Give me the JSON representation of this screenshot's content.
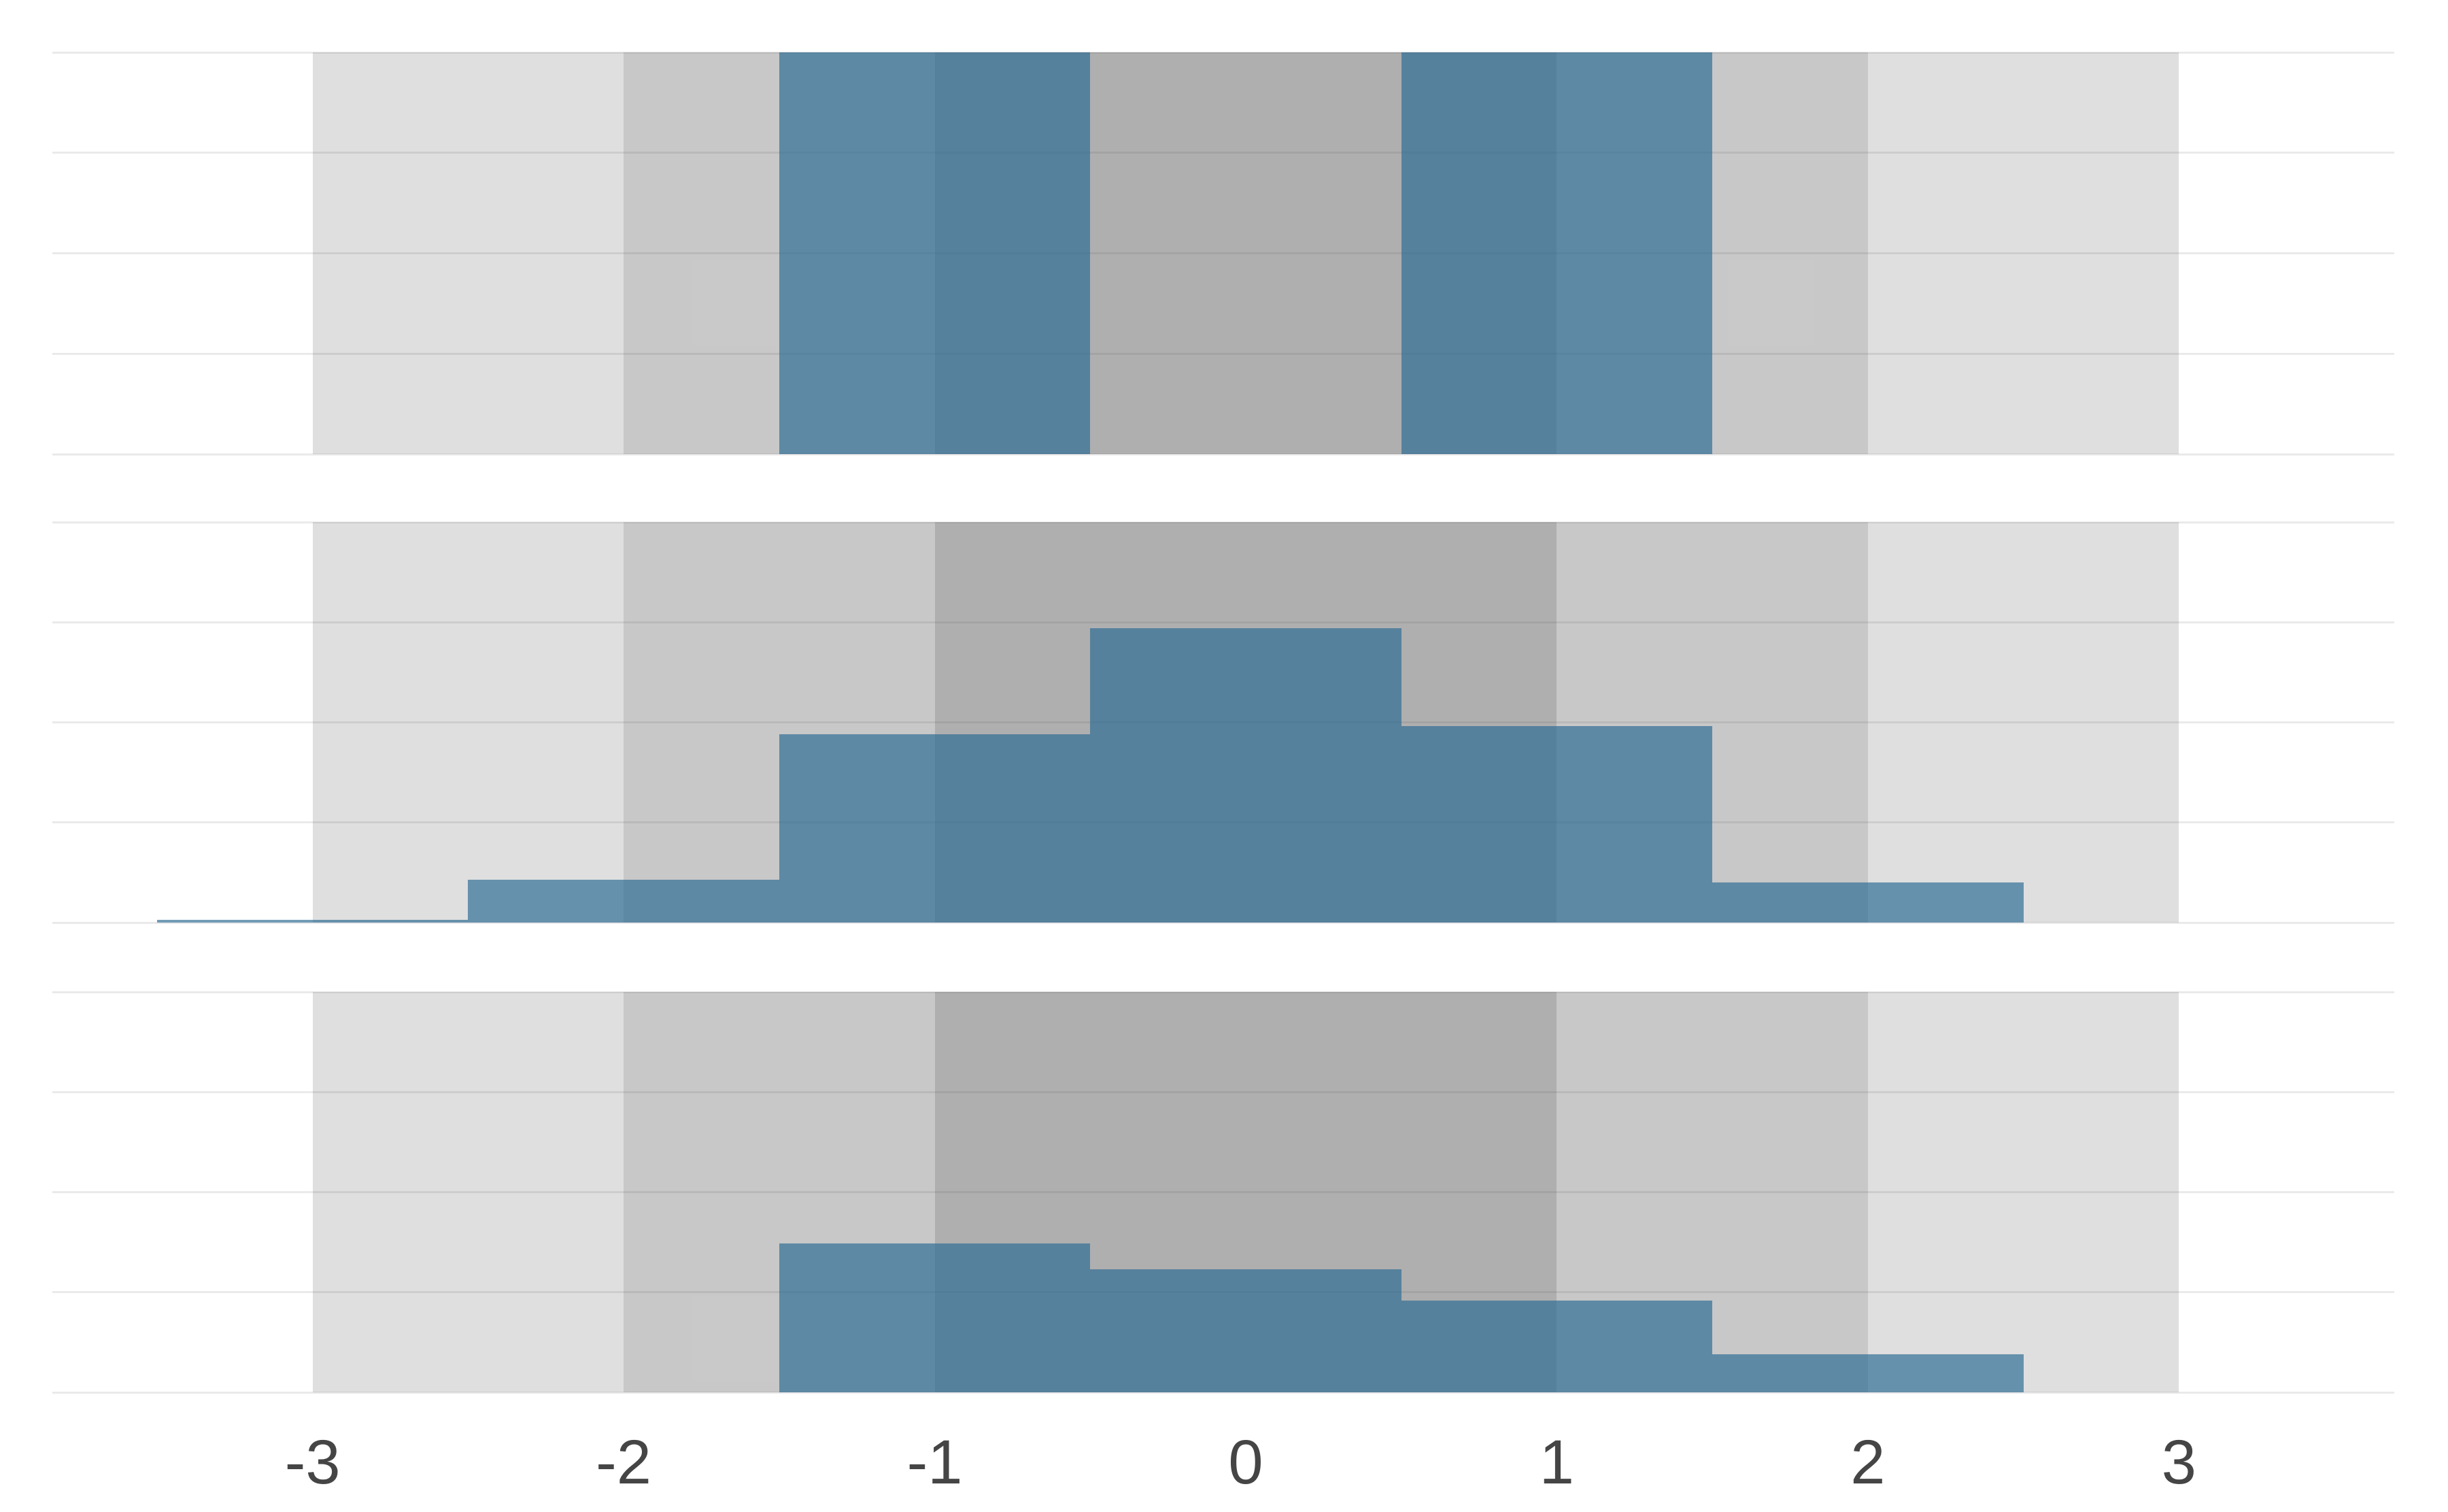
{
  "chart_data": {
    "type": "bar",
    "variant": "three vertically faceted histograms over nested gray sigma bands (white background, light horizontal gridlines, shared x axis)",
    "x_ticks": [
      -3,
      -2,
      -1,
      0,
      1,
      2,
      3
    ],
    "x_range": [
      -3.5,
      3.5
    ],
    "ylim": [
      0,
      4
    ],
    "y_gridlines": [
      0,
      1,
      2,
      3,
      4
    ],
    "bin_width": 1,
    "grid": true,
    "legend": false,
    "bands": [
      {
        "from": -3,
        "to": 3,
        "label": "outer-band"
      },
      {
        "from": -2,
        "to": 2,
        "label": "middle-band"
      },
      {
        "from": -1,
        "to": 1,
        "label": "inner-band"
      }
    ],
    "panels": [
      {
        "id": "top",
        "bins": [
          {
            "center": -1,
            "height": 4.0
          },
          {
            "center": 1,
            "height": 4.0
          }
        ]
      },
      {
        "id": "middle",
        "bins": [
          {
            "center": -3,
            "height": 0.03
          },
          {
            "center": -2,
            "height": 0.43
          },
          {
            "center": -1,
            "height": 1.88
          },
          {
            "center": 0,
            "height": 2.94
          },
          {
            "center": 1,
            "height": 1.96
          },
          {
            "center": 2,
            "height": 0.4
          }
        ]
      },
      {
        "id": "bottom",
        "bins": [
          {
            "center": -1,
            "height": 1.49
          },
          {
            "center": 0,
            "height": 1.23
          },
          {
            "center": 1,
            "height": 0.92
          },
          {
            "center": 2,
            "height": 0.38
          }
        ]
      }
    ],
    "colors": {
      "bar_fill": "rgba(40,105,145,0.66)",
      "band_layer_1": "rgba(75,75,75,0.18)",
      "band_layer_2": "rgba(75,75,75,0.15)",
      "band_layer_3": "rgba(75,75,75,0.20)",
      "gridline": "#eaeaea",
      "tick_label": "#454545",
      "background": "#ffffff"
    }
  },
  "x_axis": {
    "tick_labels": [
      "-3",
      "-2",
      "-1",
      "0",
      "1",
      "2",
      "3"
    ]
  }
}
